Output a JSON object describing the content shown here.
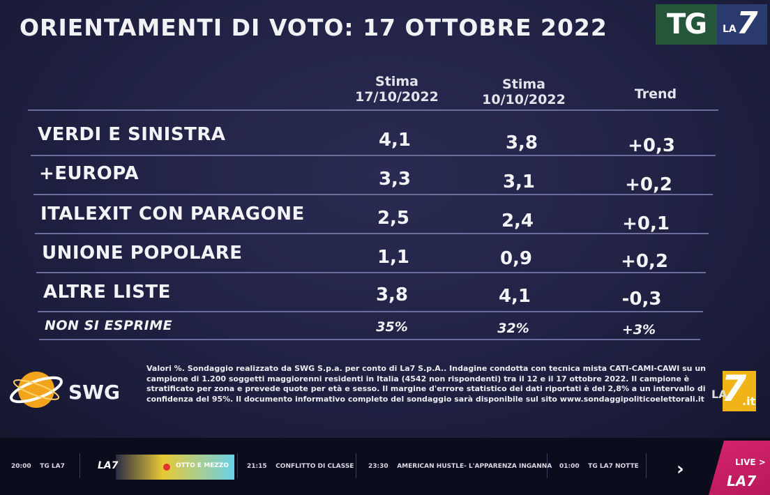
{
  "header": {
    "title": "ORIENTAMENTI DI VOTO: 17 OTTOBRE 2022",
    "logo_tg": "TG",
    "logo_la": "LA",
    "logo_seven": "7"
  },
  "table": {
    "columns": [
      {
        "line1": "Stima",
        "line2": "17/10/2022"
      },
      {
        "line1": "Stima",
        "line2": "10/10/2022"
      },
      {
        "line1": "Trend",
        "line2": ""
      }
    ],
    "rows": [
      {
        "label": "VERDI E SINISTRA",
        "current": "4,1",
        "previous": "3,8",
        "trend": "+0,3"
      },
      {
        "label": "+EUROPA",
        "current": "3,3",
        "previous": "3,1",
        "trend": "+0,2"
      },
      {
        "label": "ITALEXIT CON PARAGONE",
        "current": "2,5",
        "previous": "2,4",
        "trend": "+0,1"
      },
      {
        "label": "UNIONE POPOLARE",
        "current": "1,1",
        "previous": "0,9",
        "trend": "+0,2"
      },
      {
        "label": "ALTRE LISTE",
        "current": "3,8",
        "previous": "4,1",
        "trend": "-0,3"
      },
      {
        "label": "NON SI ESPRIME",
        "current": "35%",
        "previous": "32%",
        "trend": "+3%"
      }
    ]
  },
  "footer": {
    "swg_label": "SWG",
    "note": "Valori %. Sondaggio realizzato da SWG S.p.a. per conto di La7 S.p.A.. Indagine condotta con tecnica mista CATI-CAMI-CAWI su un campione di 1.200 soggetti maggiorenni residenti in Italia (4542 non rispondenti) tra il 12 e il 17 ottobre 2022. Il campione è stratificato per zona e prevede quote per età e sesso. Il margine d'errore statistico dei dati riportati è del 2,8% a un intervallo di confidenza del 95%. Il documento informativo completo del sondaggio sarà disponibile sul sito www.sondaggipoliticoelettorali.it",
    "la7it_la": "LA",
    "la7it_seven": "7",
    "la7it_it": ".it"
  },
  "ticker": {
    "items": [
      {
        "time": "20:00",
        "title": "TG LA7"
      },
      {
        "time": "21:15",
        "title": "CONFLITTO DI CLASSE"
      },
      {
        "time": "23:30",
        "title": "AMERICAN HUSTLE- L'APPARENZA INGANNA"
      },
      {
        "time": "01:00",
        "title": "TG LA7 NOTTE"
      }
    ],
    "live_channel": "LA7",
    "live_show": "OTTO E MEZZO",
    "live_badge": "LIVE >",
    "live_badge_channel": "LA7",
    "next_arrow": "›"
  },
  "colors": {
    "background": "#222346",
    "tg_green": "#26563a",
    "la7_blue": "#2b3a6e",
    "swg_orange": "#f2a51c",
    "la7_yellow": "#f0b418",
    "live_pink": "#d5246c"
  }
}
